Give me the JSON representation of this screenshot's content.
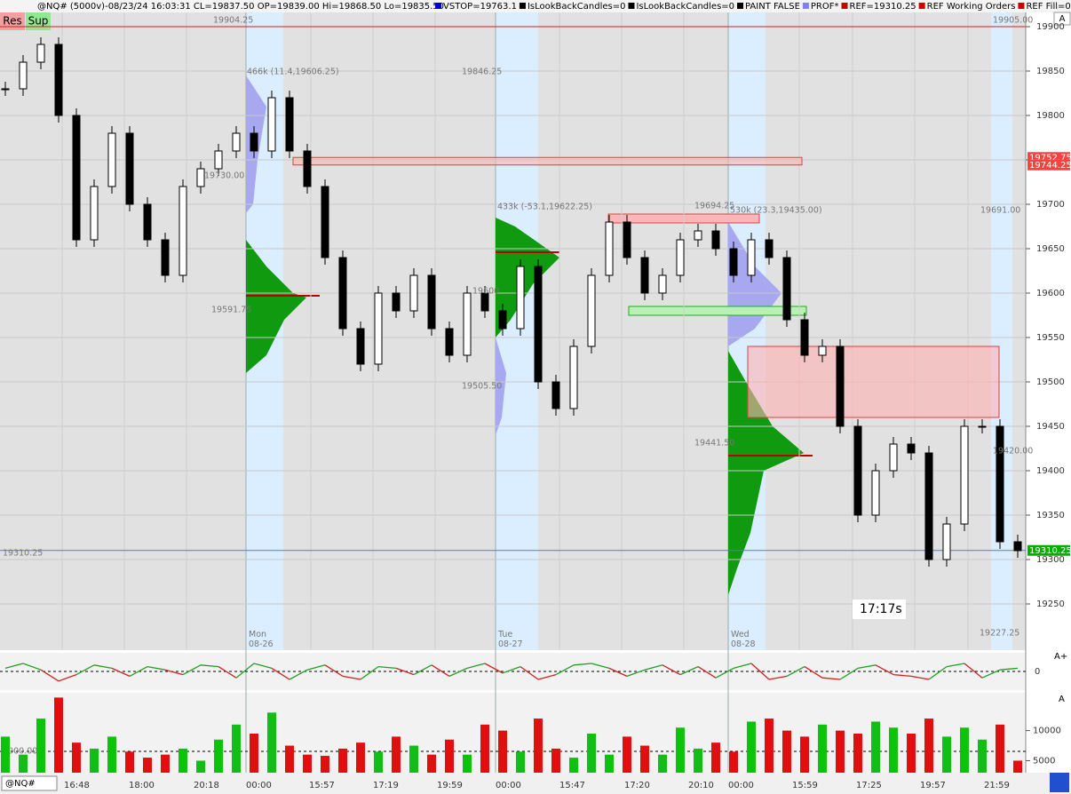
{
  "header": {
    "symbol_info": "@NQ# (5000v)-08/23/24 16:03:31 CL=19837.50 OP=19839.00 Hi=19868.50 Lo=19835.50",
    "studies": [
      "VSTOP=19763.1",
      "IsLookBackCandles=0",
      "IsLookBackCandles=0",
      "PAINT FALSE",
      "PROF*",
      "REF=19310.25",
      "REF Working Orders",
      "REF Fill=0"
    ],
    "study_colors": [
      "#0000cc",
      "#000000",
      "#000000",
      "#000000",
      "#8080ff",
      "#cc0000",
      "#cc0000",
      "#cc0000"
    ]
  },
  "buttons": [
    "Res",
    "Sup"
  ],
  "scale_button": "A",
  "chart_data": {
    "type": "candlestick",
    "ylim": [
      19198,
      19915
    ],
    "yticks": [
      19900,
      19850,
      19800,
      19750,
      19700,
      19650,
      19600,
      19550,
      19500,
      19450,
      19400,
      19350,
      19300,
      19250
    ],
    "highlights": [
      {
        "value": 19752.75,
        "color": "#ff4040"
      },
      {
        "value": 19744.25,
        "color": "#ff4040"
      },
      {
        "value": 19310.25,
        "color": "#00b000"
      }
    ],
    "zones": [
      {
        "low": 19744.25,
        "high": 19752.75
      },
      {
        "low": 19460,
        "high": 19540
      }
    ],
    "close": [
      19830,
      19860,
      19880,
      19800,
      19660,
      19720,
      19780,
      19700,
      19660,
      19620,
      19720,
      19740,
      19760,
      19780,
      19760,
      19820,
      19760,
      19720,
      19640,
      19560,
      19520,
      19600,
      19580,
      19620,
      19560,
      19530,
      19600,
      19580,
      19560,
      19630,
      19500,
      19470,
      19540,
      19620,
      19680,
      19640,
      19600,
      19620,
      19660,
      19670,
      19650,
      19620,
      19660,
      19640,
      19570,
      19530,
      19540,
      19450,
      19350,
      19400,
      19430,
      19420,
      19300,
      19340,
      19450,
      19450,
      19320,
      19310
    ],
    "annotations": [
      "19904.25",
      "19905.00",
      "466k (11.4,19606.25)",
      "19846.25",
      "19730.00",
      "19591.75",
      "433k (-53.1,19622.25)",
      "19694.25",
      "530k (23.3,19435.00)",
      "19691.00",
      "19600",
      "19505.50",
      "19441.50",
      "19420.00",
      "19227.25",
      "19310.25",
      "17:17s"
    ],
    "sessions": [
      "Mon\n08-26",
      "Tue\n08-27",
      "Wed\n08-28"
    ],
    "oscillator": {
      "yticks": [
        0
      ],
      "button": "A+",
      "ylim": [
        -1,
        1
      ],
      "values": [
        0.2,
        0.5,
        0.1,
        -0.6,
        -0.2,
        0.4,
        0.2,
        -0.3,
        0.3,
        0.1,
        -0.2,
        0.4,
        0.3,
        -0.4,
        0.5,
        0.2,
        -0.5,
        0.1,
        0.4,
        -0.3,
        -0.5,
        0.3,
        0.2,
        -0.2,
        0.4,
        -0.3,
        0.2,
        0.5,
        -0.1,
        0.3,
        -0.5,
        -0.2,
        0.4,
        0.5,
        0.2,
        -0.3,
        0.1,
        0.4,
        -0.2,
        0.3,
        -0.4,
        0.2,
        0.5,
        -0.5,
        -0.3,
        0.3,
        -0.4,
        -0.5,
        0.2,
        0.4,
        -0.2,
        -0.3,
        -0.5,
        0.3,
        0.5,
        -0.4,
        0.1,
        0.2
      ]
    },
    "volume": {
      "ylim": [
        3000,
        16000
      ],
      "yticks": [
        10000,
        5000
      ],
      "button": "A",
      "reference_label": "5000.00",
      "values": [
        9000,
        6000,
        12000,
        15500,
        8000,
        7000,
        9000,
        6500,
        5500,
        6000,
        7000,
        5000,
        8500,
        11000,
        9500,
        13000,
        7500,
        6000,
        5800,
        7000,
        8000,
        6500,
        9000,
        7500,
        6000,
        8500,
        6000,
        11000,
        10000,
        6500,
        12000,
        7000,
        5500,
        9500,
        6000,
        9000,
        7500,
        6000,
        10500,
        7000,
        8000,
        6500,
        11500,
        12000,
        10000,
        9000,
        11000,
        10000,
        9500,
        11500,
        10500,
        9500,
        12000,
        9000,
        10500,
        8500,
        11000,
        5000
      ]
    }
  },
  "time_axis": {
    "symbol": "@NQ#",
    "labels": [
      "16:48",
      "18:00",
      "20:18",
      "00:00",
      "15:57",
      "17:19",
      "19:59",
      "00:00",
      "15:47",
      "17:20",
      "20:10",
      "00:00",
      "15:59",
      "17:25",
      "19:57",
      "21:59"
    ]
  }
}
